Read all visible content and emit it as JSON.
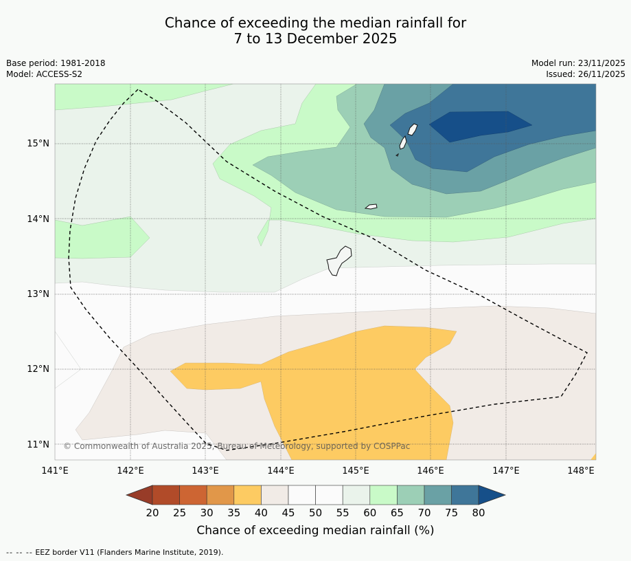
{
  "title": {
    "line1": "Chance of exceeding the median rainfall for",
    "line2": "7 to 13 December 2025"
  },
  "meta_left": {
    "base_period": "Base period: 1981-2018",
    "model": "Model: ACCESS-S2"
  },
  "meta_right": {
    "model_run": "Model run: 23/11/2025",
    "issued": "Issued: 26/11/2025"
  },
  "map": {
    "lon_ticks": [
      "141°E",
      "142°E",
      "143°E",
      "144°E",
      "145°E",
      "146°E",
      "147°E",
      "148°E"
    ],
    "lat_ticks": [
      "15°N",
      "14°N",
      "13°N",
      "12°N",
      "11°N"
    ],
    "copyright": "© Commonwealth of Australia 2025, Bureau of Meteorology, supported by COSPPac"
  },
  "colorbar": {
    "ticks": [
      "20",
      "25",
      "30",
      "35",
      "40",
      "45",
      "50",
      "55",
      "60",
      "65",
      "70",
      "75",
      "80"
    ],
    "colors": [
      "#b14b29",
      "#cd6533",
      "#e19749",
      "#fdcb62",
      "#f1ebe6",
      "#fbfbfb",
      "#fbfbfb",
      "#eaf3eb",
      "#c9fac8",
      "#9ccfb6",
      "#6aa1a5",
      "#3f7699"
    ],
    "under_color": "#983c28",
    "over_color": "#164f89",
    "label": "Chance of exceeding median rainfall (%)"
  },
  "footer": {
    "dash": "--  --  --",
    "text": "EEZ border V11 (Flanders Marine Institute, 2019)."
  }
}
